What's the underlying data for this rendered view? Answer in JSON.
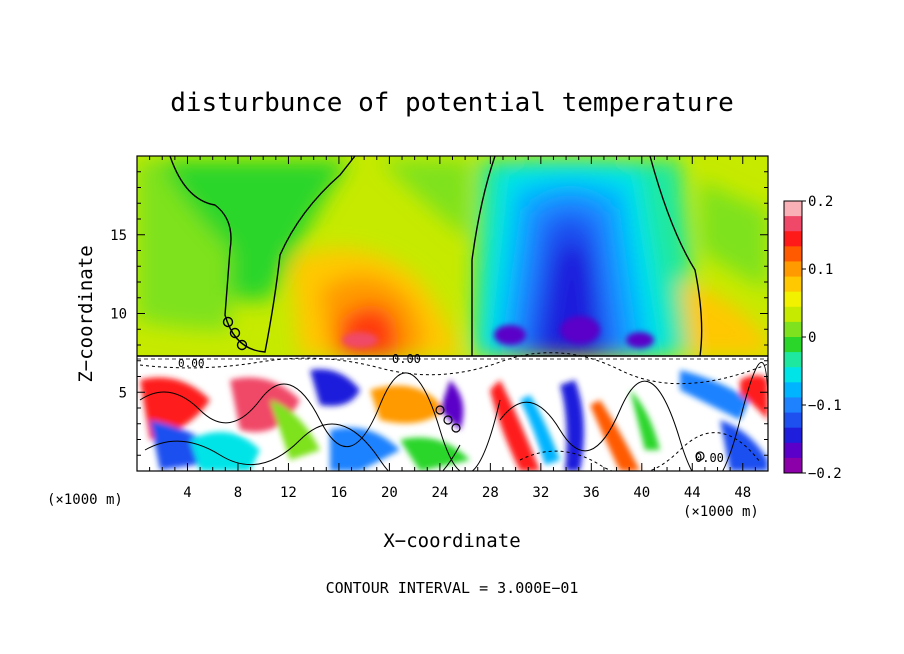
{
  "chart_data": {
    "type": "heatmap",
    "title": "disturbunce of potential temperature",
    "xlabel": "X−coordinate",
    "ylabel": "Z−coordinate",
    "x_unit": "(×1000 m)",
    "y_unit": "(×1000 m)",
    "xlim": [
      0,
      50
    ],
    "ylim": [
      0,
      20
    ],
    "x_ticks": [
      4,
      8,
      12,
      16,
      20,
      24,
      28,
      32,
      36,
      40,
      44,
      48
    ],
    "x_tick_labels": [
      "4",
      "8",
      "12",
      "16",
      "20",
      "24",
      "28",
      "32",
      "36",
      "40",
      "44",
      "48"
    ],
    "y_ticks": [
      5,
      10,
      15
    ],
    "y_tick_labels": [
      "5",
      "10",
      "15"
    ],
    "colorbar": {
      "min": -0.2,
      "max": 0.2,
      "ticks": [
        0.2,
        0.1,
        0,
        -0.1,
        -0.2
      ],
      "tick_labels": [
        "0.2",
        "0.1",
        "0",
        "−0.1",
        "−0.2"
      ],
      "colors": [
        "#f9b0b7",
        "#f04868",
        "#ff1a1a",
        "#ff5a00",
        "#ff9a00",
        "#ffc800",
        "#f2f200",
        "#c6ea00",
        "#7ee21e",
        "#2ad62a",
        "#1ee8a0",
        "#00e4e8",
        "#00b4ff",
        "#1e82ff",
        "#1e50f0",
        "#1e1edc",
        "#5a00c8",
        "#8c00aa"
      ]
    },
    "contour_labels": [
      "0.00",
      "0.00",
      "0.00"
    ],
    "annotation": "CONTOUR INTERVAL = 3.000E−01",
    "grid": false
  }
}
